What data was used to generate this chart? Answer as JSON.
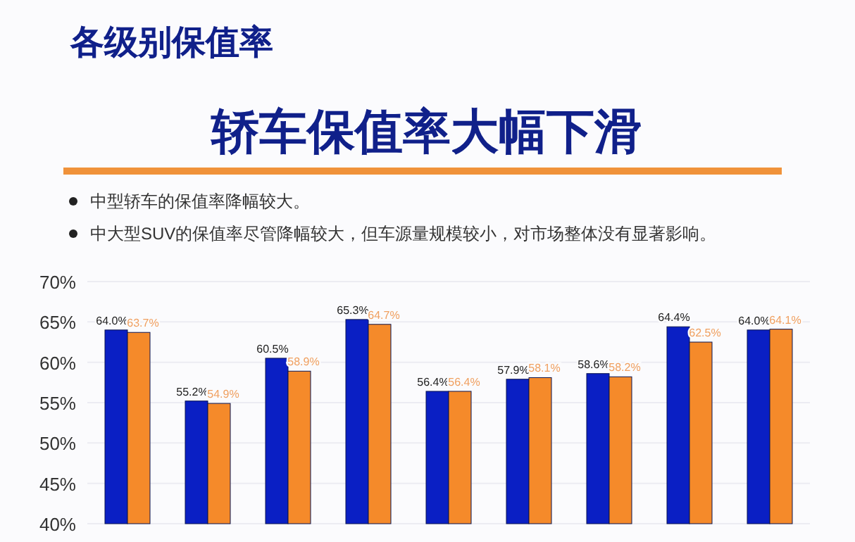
{
  "chart_data": {
    "type": "bar",
    "title": "各级别保值率",
    "subtitle": "轿车保值率大幅下滑",
    "annotations": [
      "中型轿车的保值率降幅较大。",
      "中大型SUV的保值率尽管降幅较大，但车源量规模较小，对市场整体没有显著影响。"
    ],
    "categories": [
      null,
      null,
      null,
      null,
      null,
      null,
      null,
      null,
      null
    ],
    "series": [
      {
        "color": "#0a1fc4",
        "values": [
          64.0,
          55.2,
          60.5,
          65.3,
          56.4,
          57.9,
          58.6,
          64.4,
          64.0
        ],
        "value_labels": [
          "64.0%",
          "55.2%",
          "60.5%",
          "65.3%",
          "56.4%",
          "57.9%",
          "58.6%",
          "64.4%",
          "64.0%"
        ]
      },
      {
        "color": "#f58a2a",
        "values": [
          63.7,
          54.9,
          58.9,
          64.7,
          56.4,
          58.1,
          58.2,
          62.5,
          64.1
        ],
        "value_labels": [
          "63.7%",
          "54.9%",
          "58.9%",
          "64.7%",
          "56.4%",
          "58.1%",
          "58.2%",
          "62.5%",
          "64.1%"
        ]
      }
    ],
    "ylim": [
      40,
      70
    ],
    "yticks": [
      {
        "value": 40,
        "label": "40%"
      },
      {
        "value": 45,
        "label": "45%"
      },
      {
        "value": 50,
        "label": "50%"
      },
      {
        "value": 55,
        "label": "55%"
      },
      {
        "value": 60,
        "label": "60%"
      },
      {
        "value": 65,
        "label": "65%"
      },
      {
        "value": 70,
        "label": "70%"
      }
    ],
    "grid": "y",
    "tick_labels": "y"
  }
}
